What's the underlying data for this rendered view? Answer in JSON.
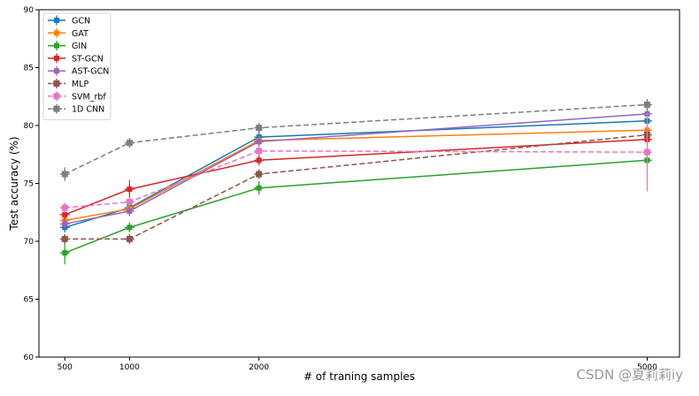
{
  "chart_data": {
    "type": "line",
    "title": "",
    "xlabel": "# of traning samples",
    "ylabel": "Test accuracy (%)",
    "x": [
      500,
      1000,
      2000,
      5000
    ],
    "xticks": [
      500,
      1000,
      2000,
      5000
    ],
    "xlim": [
      300,
      5250
    ],
    "ylim": [
      60,
      90
    ],
    "yticks": [
      60,
      65,
      70,
      75,
      80,
      85,
      90
    ],
    "grid": false,
    "legend_position": "top-left",
    "series": [
      {
        "name": "GCN",
        "values": [
          71.2,
          72.9,
          79.0,
          80.4
        ],
        "err": [
          0.3,
          0.3,
          0.3,
          0.3
        ],
        "color": "#1f77b4",
        "dashed": false
      },
      {
        "name": "GAT",
        "values": [
          71.8,
          72.8,
          78.7,
          79.6
        ],
        "err": [
          0.3,
          0.3,
          0.3,
          0.3
        ],
        "color": "#ff7f0e",
        "dashed": false
      },
      {
        "name": "GIN",
        "values": [
          69.0,
          71.2,
          74.6,
          77.0
        ],
        "err": [
          1.0,
          0.4,
          0.6,
          0.3
        ],
        "color": "#2ca02c",
        "dashed": false
      },
      {
        "name": "ST-GCN",
        "values": [
          72.3,
          74.5,
          77.0,
          78.8
        ],
        "err": [
          0.3,
          0.8,
          0.3,
          0.3
        ],
        "color": "#d62728",
        "dashed": false
      },
      {
        "name": "AST-GCN",
        "values": [
          71.5,
          72.6,
          78.6,
          81.0
        ],
        "err": [
          0.3,
          0.3,
          0.3,
          0.3
        ],
        "color": "#9467bd",
        "dashed": false
      },
      {
        "name": "MLP",
        "values": [
          70.2,
          70.2,
          75.8,
          79.2
        ],
        "err": [
          0.3,
          0.4,
          0.3,
          0.3
        ],
        "color": "#8c564b",
        "dashed": true
      },
      {
        "name": "SVM_rbf",
        "values": [
          72.9,
          73.4,
          77.8,
          77.7
        ],
        "err": [
          0.3,
          0.3,
          0.3,
          3.4
        ],
        "color": "#e377c2",
        "dashed": true
      },
      {
        "name": "1D CNN",
        "values": [
          75.8,
          78.5,
          79.8,
          81.8
        ],
        "err": [
          0.6,
          0.3,
          0.4,
          0.5
        ],
        "color": "#7f7f7f",
        "dashed": true
      }
    ]
  },
  "watermark": "CSDN @夏莉莉iy"
}
